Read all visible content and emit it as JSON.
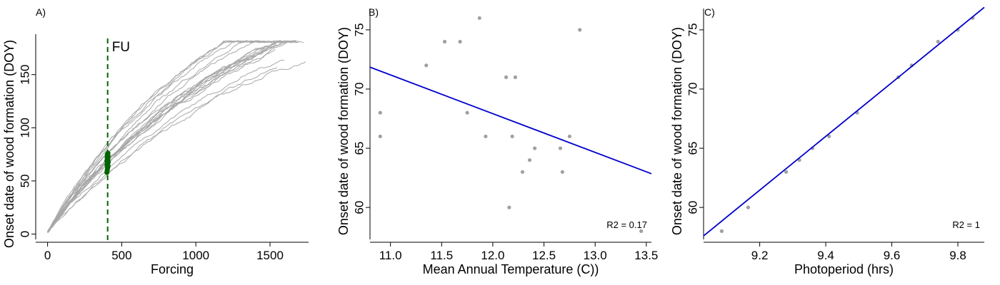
{
  "chart_data": [
    {
      "panel": "A)",
      "type": "line",
      "xlabel": "Forcing",
      "ylabel": "Onset date of wood formation (DOY)",
      "xlim": [
        -80,
        1760
      ],
      "ylim": [
        -5,
        188
      ],
      "xticks": [
        0,
        500,
        1000,
        1500
      ],
      "yticks": [
        0,
        50,
        100,
        150
      ],
      "vline": {
        "x": 405,
        "label": "FU",
        "color": "#006400",
        "style": "dashed"
      },
      "n_curves": 20,
      "curve_color": "#a8a8a8",
      "fu_points": {
        "color": "#006400",
        "x": [
          400,
          402,
          404,
          406,
          408,
          401,
          403,
          405,
          407,
          409,
          400,
          404,
          406,
          402,
          408,
          405,
          403,
          407
        ],
        "y": [
          58,
          60,
          62,
          63,
          64,
          65,
          66,
          66,
          67,
          68,
          69,
          70,
          71,
          72,
          73,
          74,
          75,
          76
        ]
      }
    },
    {
      "panel": "B)",
      "type": "scatter",
      "xlabel": "Mean Annual Temperature (C))",
      "ylabel": "Onset date of wood formation (DOY)",
      "xlim": [
        10.8,
        13.55
      ],
      "ylim": [
        57.3,
        76.8
      ],
      "xticks": [
        11.0,
        11.5,
        12.0,
        12.5,
        13.0,
        13.5
      ],
      "xtick_labels": [
        "11.0",
        "11.5",
        "12.0",
        "12.5",
        "13.0",
        "13.5"
      ],
      "yticks": [
        60,
        65,
        70,
        75
      ],
      "point_color": "#a0a0a0",
      "x": [
        10.9,
        10.9,
        11.35,
        11.53,
        11.68,
        11.75,
        11.87,
        11.93,
        12.13,
        12.16,
        12.19,
        12.22,
        12.29,
        12.36,
        12.41,
        12.66,
        12.68,
        12.75,
        12.85,
        13.45
      ],
      "y": [
        66,
        68,
        72,
        74,
        74,
        68,
        76,
        66,
        71,
        60,
        66,
        71,
        63,
        64,
        65,
        65,
        63,
        66,
        75,
        58
      ],
      "fit": {
        "x": [
          10.8,
          13.55
        ],
        "y": [
          71.85,
          62.85
        ],
        "color": "#0000cc"
      },
      "annotation": "R2 = 0.17"
    },
    {
      "panel": "C)",
      "type": "scatter",
      "xlabel": "Photoperiod (hrs)",
      "ylabel": "Onset date of wood formation (DOY)",
      "xlim": [
        9.03,
        9.88
      ],
      "ylim": [
        57.3,
        76.8
      ],
      "xticks": [
        9.2,
        9.4,
        9.6,
        9.8
      ],
      "xtick_labels": [
        "9.2",
        "9.4",
        "9.6",
        "9.8"
      ],
      "yticks": [
        60,
        65,
        70,
        75
      ],
      "point_color": "#a0a0a0",
      "x": [
        9.085,
        9.165,
        9.28,
        9.32,
        9.36,
        9.41,
        9.495,
        9.62,
        9.66,
        9.74,
        9.8,
        9.845
      ],
      "y": [
        58,
        60,
        63,
        64,
        65,
        66,
        68,
        71,
        72,
        74,
        75,
        76
      ],
      "fit": {
        "x": [
          9.03,
          9.88
        ],
        "y": [
          57.6,
          76.9
        ],
        "color": "#0000cc"
      },
      "annotation": "R2 = 1"
    }
  ]
}
